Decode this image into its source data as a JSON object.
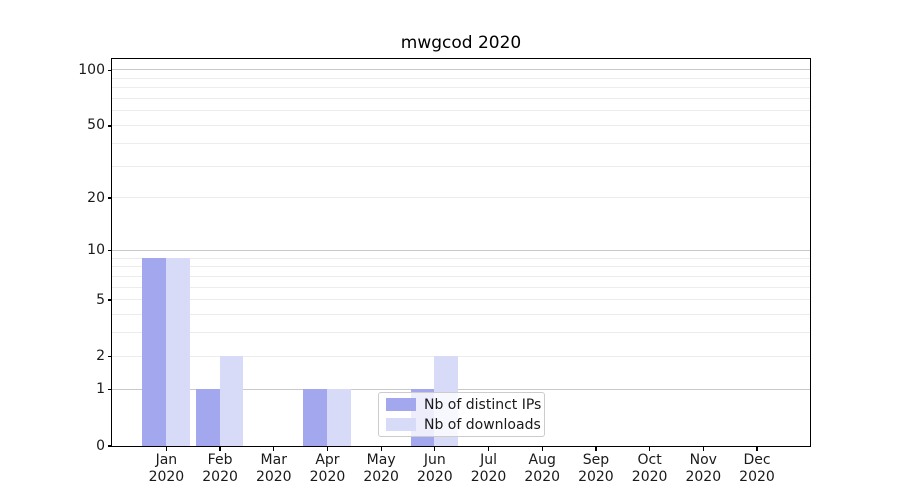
{
  "title": "mwgcod 2020",
  "chart_data": {
    "type": "bar",
    "title": "mwgcod 2020",
    "categories": [
      "Jan",
      "Feb",
      "Mar",
      "Apr",
      "May",
      "Jun",
      "Jul",
      "Aug",
      "Sep",
      "Oct",
      "Nov",
      "Dec"
    ],
    "category_year": "2020",
    "series": [
      {
        "name": "Nb of distinct IPs",
        "color": "#a3a7ee",
        "values": [
          9,
          1,
          0,
          1,
          0,
          1,
          0,
          0,
          0,
          0,
          0,
          0
        ]
      },
      {
        "name": "Nb of downloads",
        "color": "#d8dbf8",
        "values": [
          9,
          2,
          0,
          1,
          0,
          2,
          0,
          0,
          0,
          0,
          0,
          0
        ]
      }
    ],
    "yscale": "log1p",
    "ylim": [
      0,
      114
    ],
    "yticks": [
      0,
      1,
      2,
      5,
      10,
      20,
      50,
      100
    ],
    "ytick_labels": [
      "0",
      "1",
      "2",
      "5",
      "10",
      "20",
      "50",
      "100"
    ],
    "major_gridlines": [
      1,
      10,
      100
    ],
    "minor_gridlines": [
      2,
      3,
      4,
      5,
      6,
      7,
      8,
      9,
      20,
      30,
      40,
      50,
      60,
      70,
      80,
      90
    ],
    "grid": "on",
    "legend_position": "lower center, inside plot",
    "colors": {
      "major_grid": "#c9c9c9",
      "minor_grid": "#ececec",
      "spine": "#000000",
      "text": "#1a1a1a",
      "legend_border": "#cccccc"
    }
  }
}
